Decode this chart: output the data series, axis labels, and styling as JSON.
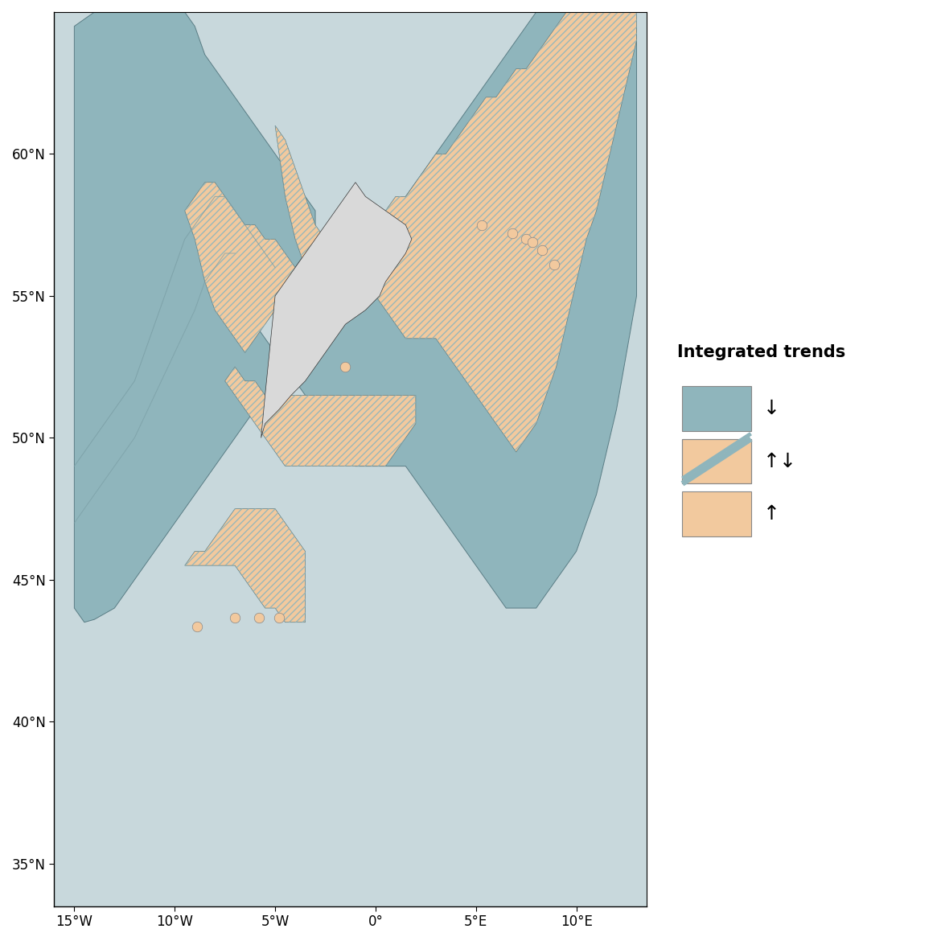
{
  "ocean_color": "#c8d8dc",
  "land_color": "#d9d9d9",
  "land_border_color": "#333333",
  "assessment_color": "#8fb5bc",
  "orange_color": "#f2c99e",
  "blue_gray_color": "#8fb5bc",
  "point_color": "#f2c99e",
  "point_edge_color": "#888888",
  "legend_title": "Integrated trends",
  "xlim": [
    -16,
    13.5
  ],
  "ylim": [
    33.5,
    65.0
  ],
  "tick_lons": [
    -15,
    -10,
    -5,
    0,
    5,
    10
  ],
  "tick_lats": [
    35,
    40,
    45,
    50,
    55,
    60
  ],
  "fixed_stations_orange": [
    {
      "lon": -8.9,
      "lat": 43.35
    },
    {
      "lon": -7.0,
      "lat": 43.65
    },
    {
      "lon": -5.8,
      "lat": 43.65
    },
    {
      "lon": -4.8,
      "lat": 43.65
    },
    {
      "lon": -1.5,
      "lat": 52.5
    },
    {
      "lon": 5.3,
      "lat": 57.5
    },
    {
      "lon": 6.8,
      "lat": 57.2
    },
    {
      "lon": 7.5,
      "lat": 57.0
    },
    {
      "lon": 7.8,
      "lat": 56.9
    },
    {
      "lon": 8.3,
      "lat": 56.6
    },
    {
      "lon": 8.9,
      "lat": 56.1
    }
  ]
}
